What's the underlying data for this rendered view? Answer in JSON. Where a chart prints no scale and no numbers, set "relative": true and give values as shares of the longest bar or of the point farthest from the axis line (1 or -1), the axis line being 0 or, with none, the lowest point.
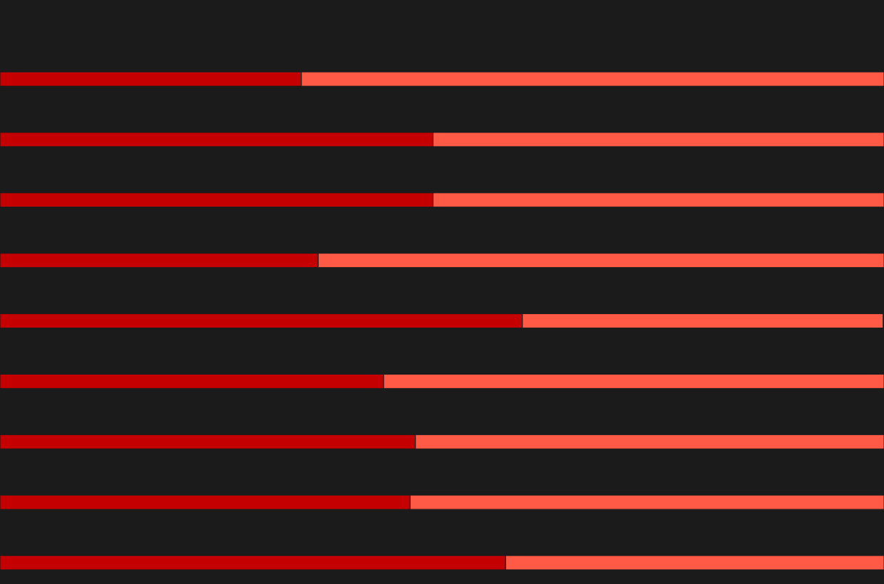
{
  "chart_data": {
    "type": "bar",
    "orientation": "horizontal",
    "stacked": true,
    "relative": true,
    "categories": [
      null,
      null,
      null,
      null,
      null,
      null,
      null,
      null,
      null
    ],
    "series": [
      {
        "color": "#c40000",
        "values": [
          0.341,
          0.49,
          0.49,
          0.36,
          0.591,
          0.434,
          0.47,
          0.464,
          0.572
        ]
      },
      {
        "color": "#ff5a45",
        "values": [
          0.659,
          0.51,
          0.51,
          0.64,
          0.408,
          0.566,
          0.53,
          0.536,
          0.428
        ]
      }
    ]
  }
}
